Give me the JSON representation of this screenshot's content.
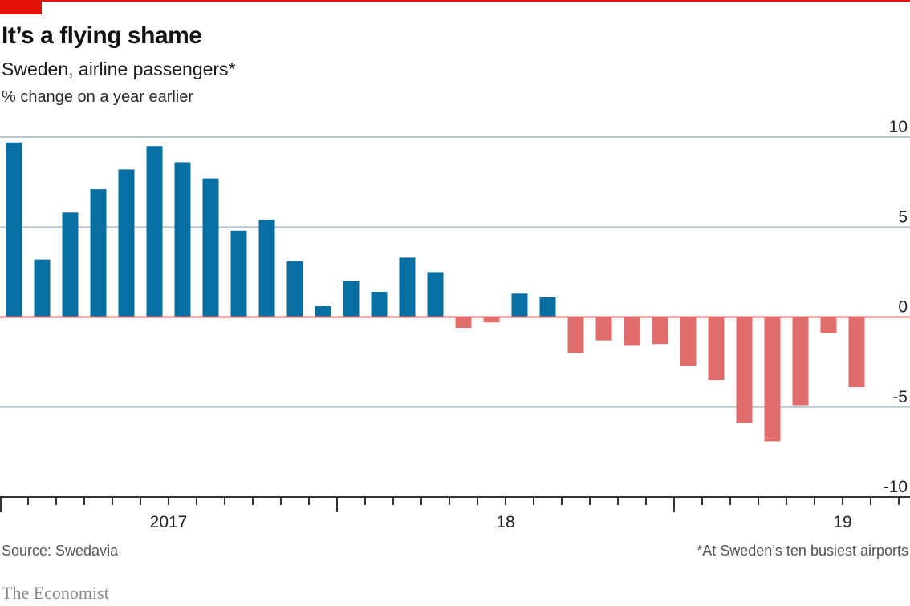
{
  "header": {
    "title": "It’s a flying shame",
    "subtitle": "Sweden, airline passengers*",
    "units": "% change on a year earlier"
  },
  "footer": {
    "source": "Source: Swedavia",
    "footnote": "*At Sweden’s ten busiest airports",
    "brand": "The Economist"
  },
  "colors": {
    "accent": "#e3120b",
    "positive_bar": "#076fa1",
    "negative_bar": "#e06c6c",
    "zero_line": "#e06c6c",
    "gridline": "#b7c6cf",
    "axis": "#333333"
  },
  "chart_data": {
    "type": "bar",
    "title": "It’s a flying shame",
    "subtitle": "Sweden, airline passengers*",
    "ylabel": "% change on a year earlier",
    "xlabel": "",
    "ylim": [
      -10,
      10
    ],
    "yticks": [
      10,
      5,
      0,
      -5,
      -10
    ],
    "ytick_labels": [
      "10",
      "5",
      "0",
      "-5",
      "-10"
    ],
    "y_axis_position": "right",
    "grid": true,
    "x_months_span": 32,
    "x_year_labels": [
      {
        "label": "2017",
        "month_index": 6
      },
      {
        "label": "18",
        "month_index": 18
      },
      {
        "label": "19",
        "month_index": 30
      }
    ],
    "x_year_boundaries": [
      0,
      12,
      24
    ],
    "categories": [
      "Jan 2017",
      "Feb 2017",
      "Mar 2017",
      "Apr 2017",
      "May 2017",
      "Jun 2017",
      "Jul 2017",
      "Aug 2017",
      "Sep 2017",
      "Oct 2017",
      "Nov 2017",
      "Dec 2017",
      "Jan 2018",
      "Feb 2018",
      "Mar 2018",
      "Apr 2018",
      "May 2018",
      "Jun 2018",
      "Jul 2018",
      "Aug 2018",
      "Sep 2018",
      "Oct 2018",
      "Nov 2018",
      "Dec 2018",
      "Jan 2019",
      "Feb 2019",
      "Mar 2019",
      "Apr 2019",
      "May 2019",
      "Jun 2019",
      "Jul 2019"
    ],
    "values": [
      9.7,
      3.2,
      5.8,
      7.1,
      8.2,
      9.5,
      8.6,
      7.7,
      4.8,
      5.4,
      3.1,
      0.6,
      2.0,
      1.4,
      3.3,
      2.5,
      -0.6,
      -0.3,
      1.3,
      1.1,
      -2.0,
      -1.3,
      -1.6,
      -1.5,
      -2.7,
      -3.5,
      -5.9,
      -6.9,
      -4.9,
      -0.9,
      -3.9
    ],
    "notes": "Positive bars blue, negative bars red"
  }
}
